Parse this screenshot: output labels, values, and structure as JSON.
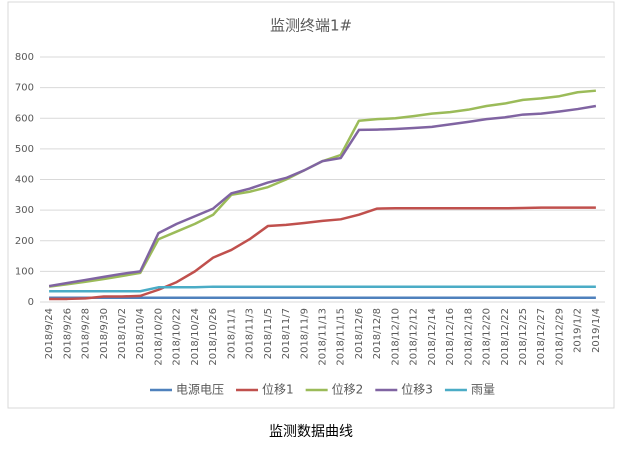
{
  "chart_data": {
    "type": "line",
    "title": "监测终端1#",
    "caption": "监测数据曲线",
    "categories": [
      "2018/9/24",
      "2018/9/26",
      "2018/9/28",
      "2018/9/30",
      "2018/10/2",
      "2018/10/4",
      "2018/10/20",
      "2018/10/22",
      "2018/10/24",
      "2018/10/26",
      "2018/11/1",
      "2018/11/3",
      "2018/11/5",
      "2018/11/7",
      "2018/11/9",
      "2018/11/13",
      "2018/11/15",
      "2018/12/6",
      "2018/12/8",
      "2018/12/10",
      "2018/12/12",
      "2018/12/14",
      "2018/12/16",
      "2018/12/18",
      "2018/12/20",
      "2018/12/22",
      "2018/12/25",
      "2018/12/27",
      "2018/12/29",
      "2019/1/2",
      "2019/1/4"
    ],
    "series": [
      {
        "name": "电源电压",
        "color": "#4f81bd",
        "values": [
          14,
          14,
          14,
          14,
          14,
          14,
          14,
          14,
          14,
          14,
          14,
          14,
          14,
          14,
          14,
          14,
          14,
          14,
          14,
          14,
          14,
          14,
          14,
          14,
          14,
          14,
          14,
          14,
          14,
          14,
          14
        ]
      },
      {
        "name": "位移1",
        "color": "#c0504d",
        "values": [
          10,
          10,
          12,
          18,
          18,
          20,
          40,
          65,
          100,
          145,
          170,
          205,
          248,
          252,
          258,
          265,
          270,
          285,
          305,
          306,
          306,
          306,
          306,
          306,
          306,
          306,
          307,
          308,
          308,
          308,
          308
        ]
      },
      {
        "name": "位移2",
        "color": "#9bbb59",
        "values": [
          50,
          58,
          66,
          75,
          85,
          95,
          205,
          230,
          255,
          285,
          350,
          360,
          375,
          400,
          430,
          460,
          480,
          592,
          597,
          600,
          607,
          615,
          620,
          628,
          640,
          648,
          660,
          665,
          672,
          685,
          690
        ]
      },
      {
        "name": "位移3",
        "color": "#8064a2",
        "values": [
          52,
          62,
          72,
          82,
          92,
          100,
          225,
          255,
          280,
          305,
          355,
          370,
          390,
          405,
          430,
          460,
          470,
          562,
          563,
          565,
          568,
          572,
          580,
          588,
          597,
          603,
          612,
          615,
          622,
          630,
          640
        ]
      },
      {
        "name": "雨量",
        "color": "#4bacc6",
        "values": [
          35,
          35,
          35,
          35,
          35,
          35,
          48,
          48,
          48,
          50,
          50,
          50,
          50,
          50,
          50,
          50,
          50,
          50,
          50,
          50,
          50,
          50,
          50,
          50,
          50,
          50,
          50,
          50,
          50,
          50,
          50
        ]
      }
    ],
    "ylim": [
      0,
      800
    ],
    "yticks": [
      0,
      100,
      200,
      300,
      400,
      500,
      600,
      700,
      800
    ],
    "grid": true,
    "legend": "bottom"
  }
}
